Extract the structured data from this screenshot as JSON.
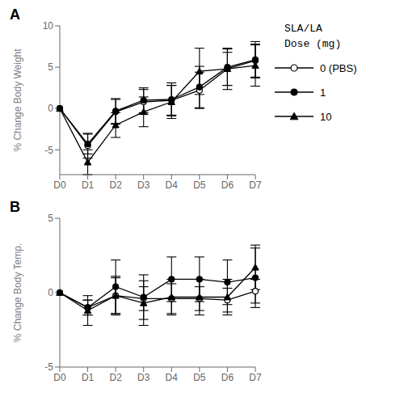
{
  "chart_data": [
    {
      "type": "line",
      "title": "A",
      "y_label": "% Change Body Weight",
      "categories": [
        "D0",
        "D1",
        "D2",
        "D3",
        "D4",
        "D5",
        "D6",
        "D7"
      ],
      "ylim": [
        -8,
        10
      ],
      "yticks": [
        -5,
        0,
        5,
        10
      ],
      "grid": false,
      "legend": "upper right",
      "legend_title": [
        "SLA/LA",
        "Dose (mg)"
      ],
      "series": [
        {
          "name": "0 (PBS)",
          "color": "#000000",
          "marker": "open circle",
          "values": [
            0,
            -4.5,
            -0.4,
            0.8,
            1.0,
            2.2,
            4.8,
            5.8
          ],
          "errors": [
            0,
            1.5,
            1.5,
            1.5,
            1.8,
            2.2,
            2.0,
            2.0
          ]
        },
        {
          "name": "1",
          "color": "#000000",
          "marker": "circle",
          "values": [
            0,
            -4.3,
            -0.3,
            1.0,
            1.1,
            2.6,
            5.0,
            5.9
          ],
          "errors": [
            0,
            1.2,
            1.5,
            1.5,
            2.0,
            2.5,
            2.2,
            2.2
          ]
        },
        {
          "name": "10",
          "color": "#000000",
          "marker": "triangle",
          "values": [
            0,
            -6.5,
            -2.0,
            -0.4,
            0.8,
            4.5,
            4.8,
            5.2
          ],
          "errors": [
            0,
            1.5,
            1.5,
            1.8,
            2.0,
            2.8,
            2.5,
            2.5
          ]
        }
      ]
    },
    {
      "type": "line",
      "title": "B",
      "y_label": "% Change Body Temp.",
      "categories": [
        "D0",
        "D1",
        "D2",
        "D3",
        "D4",
        "D5",
        "D6",
        "D7"
      ],
      "ylim": [
        -5,
        5
      ],
      "yticks": [
        -5,
        0,
        5
      ],
      "grid": false,
      "series": [
        {
          "name": "0 (PBS)",
          "color": "#000000",
          "marker": "open circle",
          "values": [
            0,
            -1.0,
            -0.2,
            -0.4,
            -0.4,
            -0.4,
            -0.5,
            0.1
          ],
          "errors": [
            0,
            0.5,
            1.3,
            0.8,
            1.0,
            0.8,
            0.8,
            0.8
          ]
        },
        {
          "name": "1",
          "color": "#000000",
          "marker": "circle",
          "values": [
            0,
            -1.0,
            0.4,
            -0.3,
            0.9,
            0.9,
            0.7,
            1.0
          ],
          "errors": [
            0,
            0.5,
            1.8,
            1.5,
            1.5,
            1.5,
            1.5,
            2.0
          ]
        },
        {
          "name": "10",
          "color": "#000000",
          "marker": "triangle",
          "values": [
            0,
            -1.2,
            -0.2,
            -0.7,
            -0.3,
            -0.3,
            -0.3,
            1.7
          ],
          "errors": [
            0,
            1.0,
            1.2,
            1.5,
            1.2,
            1.2,
            1.2,
            1.5
          ]
        }
      ]
    }
  ]
}
